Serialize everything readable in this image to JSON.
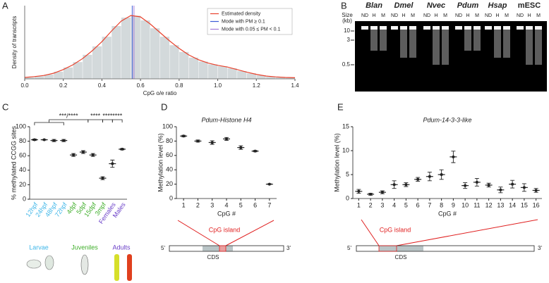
{
  "panels": [
    "A",
    "B",
    "C",
    "D",
    "E"
  ],
  "chart_data": [
    {
      "type": "histogram",
      "xlabel": "CpG o/e ratio",
      "ylabel": "Density of transcripts",
      "bins": [
        0,
        0.05,
        0.1,
        0.15,
        0.2,
        0.25,
        0.3,
        0.35,
        0.4,
        0.45,
        0.5,
        0.55,
        0.6,
        0.65,
        0.7,
        0.75,
        0.8,
        0.85,
        0.9,
        0.95,
        1.0,
        1.05,
        1.1,
        1.15,
        1.2,
        1.25,
        1.3,
        1.35,
        1.4
      ],
      "values": [
        0.06,
        0.1,
        0.16,
        0.26,
        0.41,
        0.6,
        0.86,
        1.16,
        1.5,
        1.88,
        2.18,
        2.25,
        2.08,
        1.8,
        1.5,
        1.2,
        0.96,
        0.76,
        0.62,
        0.52,
        0.45,
        0.38,
        0.28,
        0.2,
        0.13,
        0.08,
        0.06,
        0.04
      ],
      "color": "#d3d9db",
      "series": [
        {
          "name": "Estimated density",
          "color": "#e8412c",
          "x": [
            0,
            0.05,
            0.1,
            0.15,
            0.2,
            0.25,
            0.3,
            0.35,
            0.4,
            0.45,
            0.5,
            0.55,
            0.6,
            0.65,
            0.7,
            0.75,
            0.8,
            0.85,
            0.9,
            0.95,
            1.0,
            1.05,
            1.1,
            1.15,
            1.2,
            1.25,
            1.3,
            1.35,
            1.4
          ],
          "values": [
            0.05,
            0.08,
            0.12,
            0.2,
            0.33,
            0.5,
            0.72,
            1.0,
            1.32,
            1.7,
            2.05,
            2.25,
            2.2,
            1.95,
            1.65,
            1.35,
            1.08,
            0.85,
            0.68,
            0.56,
            0.48,
            0.42,
            0.33,
            0.24,
            0.16,
            0.1,
            0.07,
            0.05,
            0.04
          ]
        }
      ],
      "modes": [
        {
          "name": "Mode with PM ≥ 0.1",
          "color": "#3b5bd6",
          "value": 0.557
        },
        {
          "name": "Mode with 0.05 ≤ PM < 0.1",
          "color": "#a37ad6",
          "value": 0.566
        }
      ],
      "xlim": [
        0,
        1.4
      ],
      "ylim": [
        0,
        2.6
      ],
      "xticks": [
        {
          "value": 0,
          "label": "0.0"
        },
        0.2,
        0.4,
        0.6,
        0.8,
        {
          "value": 1,
          "label": "1.0"
        },
        1.2,
        1.4
      ],
      "legend": "top-right"
    },
    {
      "type": "errorbar",
      "ylabel": "% methylated CCGG sites",
      "categories": [
        "12hpf",
        "24hpf",
        "48hpf",
        "72hpf",
        "4dpf",
        "5dpf",
        "15dpf",
        "3mpf",
        "Females",
        "Males"
      ],
      "label_colors": [
        "#3fb6e8",
        "#3fb6e8",
        "#3fb6e8",
        "#3fb6e8",
        "#3fae2a",
        "#3fae2a",
        "#3fae2a",
        "#3fae2a",
        "#6a3fc8",
        "#6a3fc8"
      ],
      "values": [
        82,
        82,
        81,
        81,
        61,
        65,
        61,
        29,
        49,
        69
      ],
      "errors": [
        1,
        0.5,
        1.5,
        1.5,
        2,
        2,
        2,
        2,
        5,
        1
      ],
      "ylim": [
        0,
        100
      ],
      "yticks": [
        0,
        20,
        40,
        60,
        80,
        100
      ],
      "significance": [
        "***/****",
        "****",
        "****",
        "****"
      ],
      "groups": [
        {
          "name": "Larvae",
          "color": "#3fb6e8"
        },
        {
          "name": "Juveniles",
          "color": "#3fae2a"
        },
        {
          "name": "Adults",
          "color": "#6a3fc8"
        }
      ]
    },
    {
      "type": "errorbar",
      "title": "Pdum-Histone H4",
      "xlabel": "CpG #",
      "ylabel": "Methylation level (%)",
      "x": [
        1,
        2,
        3,
        4,
        5,
        6,
        7
      ],
      "values": [
        87,
        80,
        78,
        83,
        71,
        66,
        20
      ],
      "errors": [
        1,
        1.5,
        2.5,
        2,
        2.5,
        1,
        0.5
      ],
      "xlim": [
        0.5,
        7.5
      ],
      "xticks": [
        1,
        2,
        3,
        4,
        5,
        6,
        7
      ],
      "ylim": [
        0,
        100
      ],
      "yticks": [
        0,
        20,
        40,
        60,
        80,
        100
      ]
    },
    {
      "type": "errorbar",
      "title": "Pdum-14-3-3-like",
      "xlabel": "CpG #",
      "ylabel": "Methylation level (%)",
      "x": [
        1,
        2,
        3,
        4,
        5,
        6,
        7,
        8,
        9,
        10,
        11,
        12,
        13,
        14,
        15,
        16
      ],
      "values": [
        1.5,
        0.9,
        1.3,
        2.9,
        2.9,
        4,
        4.6,
        5,
        8.7,
        2.7,
        3.4,
        2.8,
        1.8,
        3,
        2.3,
        1.7
      ],
      "errors": [
        0.4,
        0.2,
        0.3,
        0.8,
        0.4,
        0.4,
        0.9,
        1,
        1.2,
        0.6,
        0.8,
        0.4,
        0.6,
        0.8,
        0.8,
        0.4
      ],
      "xlim": [
        0.5,
        16.5
      ],
      "xticks": [
        1,
        2,
        3,
        4,
        5,
        6,
        7,
        8,
        9,
        10,
        11,
        12,
        13,
        14,
        15,
        16
      ],
      "ylim": [
        0,
        15
      ],
      "yticks": [
        0,
        5,
        10,
        15
      ]
    }
  ],
  "gel": {
    "species": [
      "Blan",
      "Dmel",
      "Nvec",
      "Pdum",
      "Hsap",
      "mESC"
    ],
    "lanes": [
      "ND",
      "H",
      "M"
    ],
    "size_title": "Size",
    "size_unit": "(kb)",
    "sizes": [
      "10",
      "3",
      "0.5"
    ]
  },
  "gene_diagrams": [
    {
      "island": "CpG island",
      "five": "5'",
      "three": "3'",
      "cds": "CDS"
    },
    {
      "island": "CpG island",
      "five": "5'",
      "three": "3'",
      "cds": "CDS"
    }
  ]
}
